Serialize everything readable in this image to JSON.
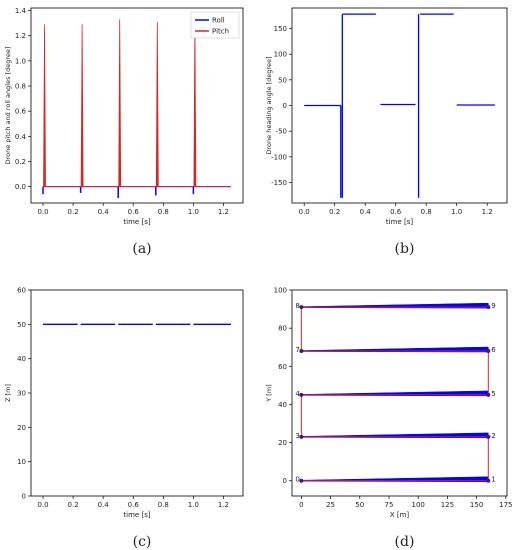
{
  "chart_data": [
    {
      "panel": "(a)",
      "type": "line",
      "xlabel": "time [s]",
      "ylabel": "Drone pitch and roll angles [degree]",
      "xlim": [
        -0.08,
        1.33
      ],
      "ylim": [
        -0.13,
        1.42
      ],
      "xticks": [
        "0.0",
        "0.2",
        "0.4",
        "0.6",
        "0.8",
        "1.0",
        "1.2"
      ],
      "yticks": [
        "0.0",
        "0.2",
        "0.4",
        "0.6",
        "0.8",
        "1.0",
        "1.2",
        "1.4"
      ],
      "legend": "top-right",
      "grid": false,
      "series": [
        {
          "name": "Roll",
          "color": "#0000ff",
          "spike_times": [
            0.0,
            0.25,
            0.5,
            0.75,
            1.0
          ],
          "spike_values": [
            -0.06,
            -0.05,
            -0.09,
            -0.07,
            -0.06
          ]
        },
        {
          "name": "Pitch",
          "color": "#d62728",
          "spike_times": [
            0.01,
            0.26,
            0.51,
            0.76,
            1.01
          ],
          "spike_values": [
            1.29,
            1.29,
            1.33,
            1.31,
            1.32
          ],
          "x_start": 0.0,
          "x_end": 1.25,
          "baseline": 0.0
        }
      ]
    },
    {
      "panel": "(b)",
      "type": "line",
      "xlabel": "time [s]",
      "ylabel": "Drone heading angle [degree]",
      "xlim": [
        -0.08,
        1.33
      ],
      "ylim": [
        -190,
        190
      ],
      "xticks": [
        "0.0",
        "0.2",
        "0.4",
        "0.6",
        "0.8",
        "1.0",
        "1.2"
      ],
      "yticks": [
        "-150",
        "-100",
        "-50",
        "0",
        "50",
        "100",
        "150"
      ],
      "grid": false,
      "segments": [
        {
          "x": [
            0.0,
            0.24
          ],
          "y": [
            0,
            0
          ]
        },
        {
          "x": [
            0.24,
            0.24
          ],
          "y": [
            -180,
            0
          ]
        },
        {
          "x": [
            0.25,
            0.25
          ],
          "y": [
            -180,
            178
          ]
        },
        {
          "x": [
            0.25,
            0.47
          ],
          "y": [
            178,
            178
          ]
        },
        {
          "x": [
            0.5,
            0.73
          ],
          "y": [
            2,
            2
          ]
        },
        {
          "x": [
            0.75,
            0.75
          ],
          "y": [
            -180,
            178
          ]
        },
        {
          "x": [
            0.76,
            0.98
          ],
          "y": [
            178,
            178
          ]
        },
        {
          "x": [
            1.0,
            1.25
          ],
          "y": [
            1,
            1
          ]
        }
      ]
    },
    {
      "panel": "(c)",
      "type": "line",
      "xlabel": "time [s]",
      "ylabel": "Z [m]",
      "xlim": [
        -0.08,
        1.33
      ],
      "ylim": [
        0,
        60
      ],
      "xticks": [
        "0.0",
        "0.2",
        "0.4",
        "0.6",
        "0.8",
        "1.0",
        "1.2"
      ],
      "yticks": [
        "0",
        "10",
        "20",
        "30",
        "40",
        "50",
        "60"
      ],
      "grid": false,
      "series": [
        {
          "color": "#0000ff",
          "segments": [
            [
              0.0,
              0.23
            ],
            [
              0.25,
              0.48
            ],
            [
              0.5,
              0.73
            ],
            [
              0.75,
              0.98
            ],
            [
              1.0,
              1.25
            ]
          ],
          "value": 50
        }
      ]
    },
    {
      "panel": "(d)",
      "type": "line",
      "xlabel": "X [m]",
      "ylabel": "Y [m]",
      "xlim": [
        -8,
        176
      ],
      "ylim": [
        -8,
        100
      ],
      "xticks": [
        "0",
        "25",
        "50",
        "75",
        "100",
        "125",
        "150",
        "175"
      ],
      "yticks": [
        "0",
        "20",
        "40",
        "60",
        "80",
        "100"
      ],
      "grid": false,
      "waypoints": [
        {
          "label": "0",
          "x": 0,
          "y": 0
        },
        {
          "label": "1",
          "x": 160,
          "y": 0
        },
        {
          "label": "2",
          "x": 160,
          "y": 23
        },
        {
          "label": "3",
          "x": 0,
          "y": 23
        },
        {
          "label": "4",
          "x": 0,
          "y": 45
        },
        {
          "label": "5",
          "x": 160,
          "y": 45
        },
        {
          "label": "6",
          "x": 160,
          "y": 68
        },
        {
          "label": "7",
          "x": 0,
          "y": 68
        },
        {
          "label": "8",
          "x": 0,
          "y": 91
        },
        {
          "label": "9",
          "x": 160,
          "y": 91
        }
      ],
      "path_color": "#d62728",
      "flight_color": "#0000ff"
    }
  ]
}
